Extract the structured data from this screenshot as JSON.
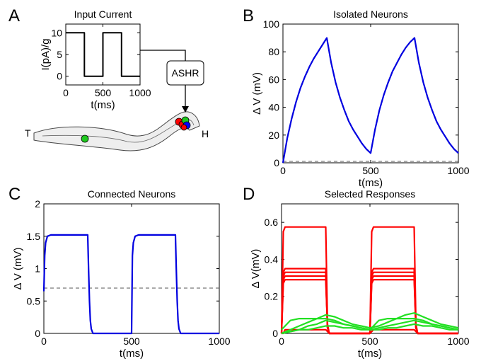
{
  "panels": {
    "A": "A",
    "B": "B",
    "C": "C",
    "D": "D"
  },
  "diagram": {
    "block_label": "ASHR",
    "tail_label": "T",
    "head_label": "H",
    "neuron_colors": {
      "red": "#ff0000",
      "green": "#1ec81e",
      "blue": "#0000ff"
    }
  },
  "chart_data": [
    {
      "id": "A",
      "type": "line",
      "title": "Input Current",
      "xlabel": "t(ms)",
      "ylabel": "I(pA)/g",
      "xlim": [
        0,
        1000
      ],
      "ylim": [
        -2,
        12
      ],
      "xticks": [
        0,
        500,
        1000
      ],
      "yticks": [
        0,
        5,
        10
      ],
      "series": [
        {
          "color": "#000000",
          "x": [
            0,
            250,
            250,
            500,
            500,
            750,
            750,
            1000
          ],
          "y": [
            10,
            10,
            0,
            0,
            10,
            10,
            0,
            0
          ]
        }
      ]
    },
    {
      "id": "B",
      "type": "line",
      "title": "Isolated Neurons",
      "xlabel": "t(ms)",
      "ylabel": "Δ V (mV)",
      "xlim": [
        0,
        1000
      ],
      "ylim": [
        0,
        100
      ],
      "xticks": [
        0,
        500,
        1000
      ],
      "yticks": [
        0,
        20,
        40,
        60,
        80,
        100
      ],
      "threshold": 1,
      "series": [
        {
          "color": "#0000e0",
          "x": [
            0,
            25,
            50,
            75,
            100,
            125,
            150,
            175,
            200,
            225,
            250,
            275,
            300,
            325,
            350,
            375,
            400,
            425,
            450,
            475,
            500,
            525,
            550,
            575,
            600,
            625,
            650,
            675,
            700,
            725,
            750,
            775,
            800,
            825,
            850,
            875,
            900,
            925,
            950,
            975,
            1000
          ],
          "y": [
            0,
            18,
            32,
            44,
            54,
            62,
            69,
            75,
            80,
            85,
            90,
            72,
            58,
            47,
            38,
            30,
            24,
            19,
            14,
            10,
            7,
            24,
            38,
            49,
            58,
            66,
            72,
            78,
            83,
            87,
            90,
            72,
            58,
            47,
            38,
            30,
            24,
            19,
            14,
            10,
            7
          ]
        }
      ]
    },
    {
      "id": "C",
      "type": "line",
      "title": "Connected Neurons",
      "xlabel": "t(ms)",
      "ylabel": "Δ V (mV)",
      "xlim": [
        0,
        1000
      ],
      "ylim": [
        0,
        2
      ],
      "xticks": [
        0,
        500,
        1000
      ],
      "yticks": [
        0,
        0.5,
        1,
        1.5,
        2
      ],
      "threshold": 0.7,
      "series": [
        {
          "color": "#0000e0",
          "x": [
            0,
            5,
            10,
            20,
            40,
            250,
            255,
            260,
            265,
            270,
            280,
            500,
            505,
            510,
            520,
            540,
            750,
            755,
            760,
            765,
            770,
            780,
            1000
          ],
          "y": [
            0.65,
            1.2,
            1.4,
            1.5,
            1.52,
            1.52,
            1.0,
            0.5,
            0.2,
            0.07,
            0.0,
            0.0,
            1.2,
            1.4,
            1.5,
            1.52,
            1.52,
            1.0,
            0.5,
            0.2,
            0.07,
            0.0,
            0.0
          ]
        }
      ]
    },
    {
      "id": "D",
      "type": "line",
      "title": "Selected Responses",
      "xlabel": "t(ms)",
      "ylabel": "Δ V(mV)",
      "xlim": [
        0,
        1000
      ],
      "ylim": [
        0,
        0.7
      ],
      "xticks": [
        0,
        500,
        1000
      ],
      "yticks": [
        0,
        0.2,
        0.4,
        0.6
      ],
      "series": [
        {
          "color": "#ff0000",
          "x": [
            0,
            10,
            20,
            250,
            260,
            270,
            500,
            510,
            520,
            750,
            760,
            770,
            1000
          ],
          "y": [
            0,
            0.55,
            0.575,
            0.575,
            0.05,
            0.0,
            0.0,
            0.55,
            0.575,
            0.575,
            0.05,
            0.0,
            0.0
          ]
        },
        {
          "color": "#ff0000",
          "x": [
            0,
            10,
            20,
            250,
            260,
            270,
            500,
            510,
            520,
            750,
            760,
            770,
            1000
          ],
          "y": [
            0,
            0.33,
            0.35,
            0.35,
            0.03,
            0.0,
            0.0,
            0.33,
            0.35,
            0.35,
            0.03,
            0.0,
            0.0
          ]
        },
        {
          "color": "#ff0000",
          "x": [
            0,
            10,
            20,
            250,
            260,
            270,
            500,
            510,
            520,
            750,
            760,
            770,
            1000
          ],
          "y": [
            0,
            0.31,
            0.33,
            0.33,
            0.03,
            0.0,
            0.0,
            0.31,
            0.33,
            0.33,
            0.03,
            0.0,
            0.0
          ]
        },
        {
          "color": "#ff0000",
          "x": [
            0,
            10,
            20,
            250,
            260,
            270,
            500,
            510,
            520,
            750,
            760,
            770,
            1000
          ],
          "y": [
            0,
            0.29,
            0.31,
            0.31,
            0.03,
            0.0,
            0.0,
            0.29,
            0.31,
            0.31,
            0.03,
            0.0,
            0.0
          ]
        },
        {
          "color": "#ff0000",
          "x": [
            0,
            10,
            20,
            250,
            260,
            270,
            500,
            510,
            520,
            750,
            760,
            770,
            1000
          ],
          "y": [
            0,
            0.27,
            0.29,
            0.29,
            0.03,
            0.0,
            0.0,
            0.27,
            0.29,
            0.29,
            0.03,
            0.0,
            0.0
          ]
        },
        {
          "color": "#ff0000",
          "x": [
            0,
            10,
            20,
            250,
            260,
            270,
            500,
            510,
            520,
            750,
            760,
            770,
            1000
          ],
          "y": [
            0,
            0.0,
            0.02,
            0.02,
            0.01,
            0.0,
            0.0,
            0.01,
            0.02,
            0.02,
            0.01,
            0.0,
            0.0
          ]
        },
        {
          "color": "#22e022",
          "x": [
            0,
            50,
            100,
            150,
            200,
            250,
            300,
            350,
            400,
            450,
            500,
            550,
            600,
            650,
            700,
            750,
            800,
            850,
            900,
            950,
            1000
          ],
          "y": [
            0.02,
            0.07,
            0.08,
            0.08,
            0.08,
            0.08,
            0.07,
            0.05,
            0.04,
            0.03,
            0.02,
            0.07,
            0.08,
            0.08,
            0.08,
            0.08,
            0.07,
            0.05,
            0.04,
            0.03,
            0.02
          ]
        },
        {
          "color": "#22e022",
          "x": [
            0,
            50,
            100,
            150,
            200,
            250,
            300,
            350,
            400,
            450,
            500,
            550,
            600,
            650,
            700,
            750,
            800,
            850,
            900,
            950,
            1000
          ],
          "y": [
            0.0,
            0.02,
            0.04,
            0.06,
            0.08,
            0.1,
            0.09,
            0.07,
            0.05,
            0.04,
            0.03,
            0.04,
            0.06,
            0.08,
            0.1,
            0.11,
            0.09,
            0.07,
            0.05,
            0.04,
            0.03
          ]
        },
        {
          "color": "#22e022",
          "x": [
            0,
            50,
            100,
            150,
            200,
            250,
            300,
            350,
            400,
            450,
            500,
            550,
            600,
            650,
            700,
            750,
            800,
            850,
            900,
            950,
            1000
          ],
          "y": [
            0.0,
            0.01,
            0.02,
            0.04,
            0.05,
            0.07,
            0.06,
            0.05,
            0.04,
            0.03,
            0.02,
            0.03,
            0.04,
            0.05,
            0.06,
            0.07,
            0.06,
            0.05,
            0.04,
            0.03,
            0.02
          ]
        },
        {
          "color": "#22e022",
          "x": [
            0,
            50,
            100,
            150,
            200,
            250,
            300,
            350,
            400,
            450,
            500,
            550,
            600,
            650,
            700,
            750,
            800,
            850,
            900,
            950,
            1000
          ],
          "y": [
            0.0,
            0.01,
            0.02,
            0.02,
            0.03,
            0.04,
            0.04,
            0.03,
            0.03,
            0.02,
            0.02,
            0.02,
            0.03,
            0.03,
            0.04,
            0.05,
            0.04,
            0.04,
            0.03,
            0.02,
            0.02
          ]
        }
      ]
    }
  ]
}
